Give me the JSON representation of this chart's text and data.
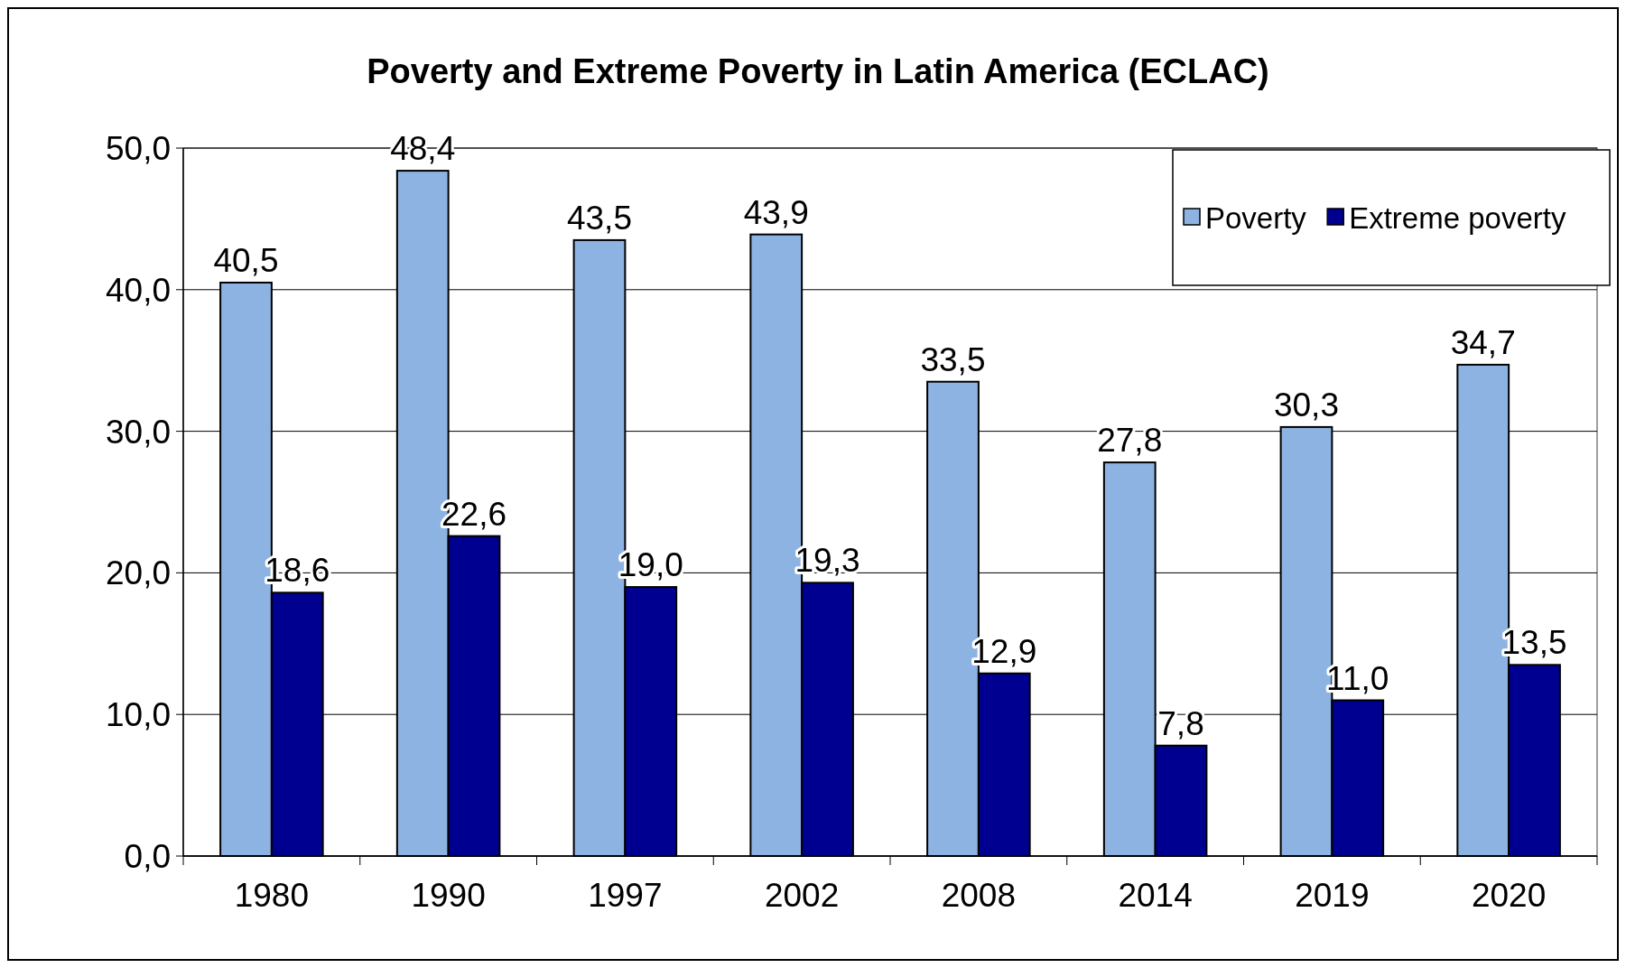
{
  "chart_data": {
    "type": "bar",
    "title": "Poverty and Extreme Poverty in Latin America (ECLAC)",
    "categories": [
      "1980",
      "1990",
      "1997",
      "2002",
      "2008",
      "2014",
      "2019",
      "2020"
    ],
    "series": [
      {
        "name": "Poverty",
        "color": "#8db3e2",
        "values": [
          40.5,
          48.4,
          43.5,
          43.9,
          33.5,
          27.8,
          30.3,
          34.7
        ],
        "value_labels": [
          "40,5",
          "48,4",
          "43,5",
          "43,9",
          "33,5",
          "27,8",
          "30,3",
          "34,7"
        ]
      },
      {
        "name": "Extreme poverty",
        "color": "#000090",
        "values": [
          18.6,
          22.6,
          19.0,
          19.3,
          12.9,
          7.8,
          11.0,
          13.5
        ],
        "value_labels": [
          "18,6",
          "22,6",
          "19,0",
          "19,3",
          "12,9",
          "7,8",
          "11,0",
          "13,5"
        ]
      }
    ],
    "ylim": [
      0,
      50
    ],
    "yticks": [
      {
        "value": 0,
        "label": "0,0"
      },
      {
        "value": 10,
        "label": "10,0"
      },
      {
        "value": 20,
        "label": "20,0"
      },
      {
        "value": 30,
        "label": "30,0"
      },
      {
        "value": 40,
        "label": "40,0"
      },
      {
        "value": 50,
        "label": "50,0"
      }
    ],
    "grid": "y",
    "legend": "top right"
  }
}
